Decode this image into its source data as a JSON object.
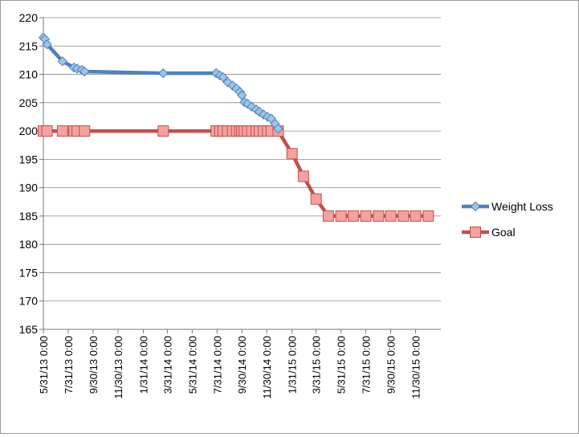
{
  "chart_data": {
    "type": "line",
    "title": "",
    "xlabel": "",
    "ylabel": "",
    "ylim": [
      165,
      220
    ],
    "y_ticks": [
      165,
      170,
      175,
      180,
      185,
      190,
      195,
      200,
      205,
      210,
      215,
      220
    ],
    "xlim": [
      "2013-05-31",
      "2016-01-31"
    ],
    "x_tick_dates": [
      "2013-05-31",
      "2013-07-31",
      "2013-09-30",
      "2013-11-30",
      "2014-01-31",
      "2014-03-31",
      "2014-05-31",
      "2014-07-31",
      "2014-09-30",
      "2014-11-30",
      "2015-01-31",
      "2015-03-31",
      "2015-05-31",
      "2015-07-31",
      "2015-09-30",
      "2015-11-30"
    ],
    "x_tick_labels": [
      "5/31/13 0:00",
      "7/31/13 0:00",
      "9/30/13 0:00",
      "11/30/13 0:00",
      "1/31/14 0:00",
      "3/31/14 0:00",
      "5/31/14 0:00",
      "7/31/14 0:00",
      "9/30/14 0:00",
      "11/30/14 0:00",
      "1/31/15 0:00",
      "3/31/15 0:00",
      "5/31/15 0:00",
      "7/31/15 0:00",
      "9/30/15 0:00",
      "11/30/15 0:00"
    ],
    "gridlines": "horizontal",
    "legend_position": "right",
    "series": [
      {
        "name": "Weight Loss",
        "color": "#4F81BD",
        "marker": "diamond",
        "points": [
          [
            "2013-05-31",
            216.5
          ],
          [
            "2013-06-04",
            216.2
          ],
          [
            "2013-06-09",
            215.3
          ],
          [
            "2013-07-17",
            212.3
          ],
          [
            "2013-08-14",
            211.2
          ],
          [
            "2013-08-22",
            211.0
          ],
          [
            "2013-09-02",
            210.8
          ],
          [
            "2013-09-09",
            210.5
          ],
          [
            "2014-03-21",
            210.2
          ],
          [
            "2014-07-29",
            210.2
          ],
          [
            "2014-08-07",
            209.8
          ],
          [
            "2014-08-15",
            209.5
          ],
          [
            "2014-08-26",
            208.6
          ],
          [
            "2014-09-07",
            208.0
          ],
          [
            "2014-09-17",
            207.5
          ],
          [
            "2014-09-25",
            206.9
          ],
          [
            "2014-09-30",
            206.3
          ],
          [
            "2014-10-06",
            205.1
          ],
          [
            "2014-10-14",
            204.8
          ],
          [
            "2014-10-24",
            204.3
          ],
          [
            "2014-11-04",
            203.8
          ],
          [
            "2014-11-12",
            203.4
          ],
          [
            "2014-11-22",
            202.9
          ],
          [
            "2014-12-02",
            202.5
          ],
          [
            "2014-12-11",
            202.2
          ],
          [
            "2014-12-20",
            201.3
          ],
          [
            "2014-12-28",
            200.4
          ]
        ]
      },
      {
        "name": "Goal",
        "color": "#C0504D",
        "marker": "square",
        "points": [
          [
            "2013-05-31",
            200
          ],
          [
            "2013-06-09",
            200
          ],
          [
            "2013-07-17",
            200
          ],
          [
            "2013-08-14",
            200
          ],
          [
            "2013-08-22",
            200
          ],
          [
            "2013-09-09",
            200
          ],
          [
            "2014-03-21",
            200
          ],
          [
            "2014-07-29",
            200
          ],
          [
            "2014-08-07",
            200
          ],
          [
            "2014-08-15",
            200
          ],
          [
            "2014-08-26",
            200
          ],
          [
            "2014-09-07",
            200
          ],
          [
            "2014-09-17",
            200
          ],
          [
            "2014-09-25",
            200
          ],
          [
            "2014-09-30",
            200
          ],
          [
            "2014-10-06",
            200
          ],
          [
            "2014-10-14",
            200
          ],
          [
            "2014-10-24",
            200
          ],
          [
            "2014-11-04",
            200
          ],
          [
            "2014-11-12",
            200
          ],
          [
            "2014-11-22",
            200
          ],
          [
            "2014-12-02",
            200
          ],
          [
            "2014-12-11",
            200
          ],
          [
            "2014-12-28",
            200
          ],
          [
            "2015-01-31",
            196
          ],
          [
            "2015-02-28",
            192
          ],
          [
            "2015-03-31",
            188
          ],
          [
            "2015-04-30",
            185
          ],
          [
            "2015-05-31",
            185
          ],
          [
            "2015-06-30",
            185
          ],
          [
            "2015-07-31",
            185
          ],
          [
            "2015-08-31",
            185
          ],
          [
            "2015-09-30",
            185
          ],
          [
            "2015-10-31",
            185
          ],
          [
            "2015-11-30",
            185
          ],
          [
            "2015-12-31",
            185
          ]
        ]
      }
    ]
  }
}
